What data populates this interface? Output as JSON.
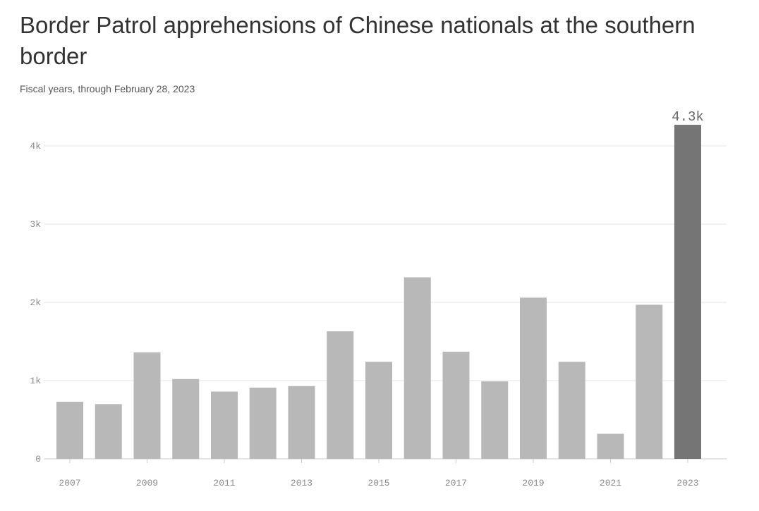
{
  "chart_data": {
    "type": "bar",
    "title": "Border Patrol apprehensions of Chinese nationals at the southern border",
    "subtitle": "Fiscal years, through February 28, 2023",
    "xlabel": "",
    "ylabel": "",
    "ylim": [
      0,
      4300
    ],
    "grid": true,
    "categories": [
      "2007",
      "2008",
      "2009",
      "2010",
      "2011",
      "2012",
      "2013",
      "2014",
      "2015",
      "2016",
      "2017",
      "2018",
      "2019",
      "2020",
      "2021",
      "2022",
      "2023"
    ],
    "x_tick_labels": [
      "2007",
      "2009",
      "2011",
      "2013",
      "2015",
      "2017",
      "2019",
      "2021",
      "2023"
    ],
    "y_ticks": [
      0,
      1000,
      2000,
      3000,
      4000
    ],
    "y_tick_labels": [
      "0",
      "1k",
      "2k",
      "3k",
      "4k"
    ],
    "values": [
      730,
      700,
      1360,
      1020,
      860,
      910,
      930,
      1630,
      1240,
      2320,
      1370,
      990,
      2060,
      1240,
      320,
      1970,
      4270
    ],
    "highlight_index": 16,
    "highlight_label": "4.3k",
    "colors": {
      "bar": "#b8b8b8",
      "highlight": "#757575",
      "grid": "#e6e6e6",
      "axis": "#cccccc"
    }
  }
}
